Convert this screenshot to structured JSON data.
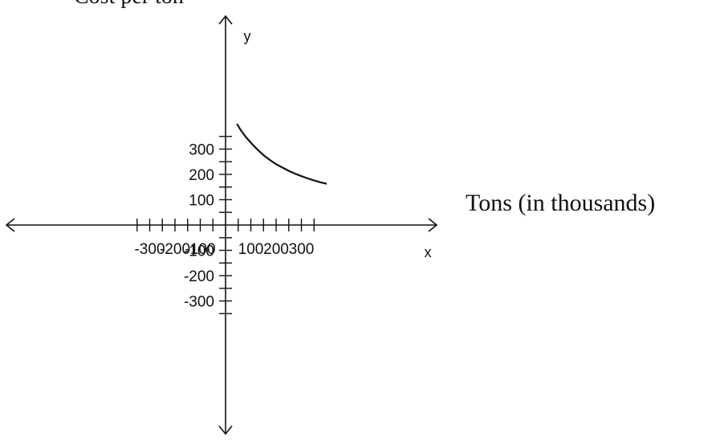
{
  "captions": {
    "top_partial": "Cost per ton",
    "x_side": "Tons (in thousands)"
  },
  "chart_data": {
    "type": "line",
    "title": "",
    "xlabel": "x",
    "ylabel": "y",
    "xlim": [
      -400,
      400
    ],
    "ylim": [
      -400,
      400
    ],
    "x_ticks": [
      -350,
      -300,
      -250,
      -200,
      -150,
      -100,
      -50,
      50,
      100,
      150,
      200,
      250,
      300,
      350
    ],
    "x_tick_labels": [
      {
        "value": -300,
        "label": "-300"
      },
      {
        "value": -200,
        "label": "-200"
      },
      {
        "value": -100,
        "label": "-100"
      },
      {
        "value": 100,
        "label": "100"
      },
      {
        "value": 200,
        "label": "200"
      },
      {
        "value": 300,
        "label": "300"
      }
    ],
    "y_ticks": [
      -350,
      -300,
      -250,
      -200,
      -150,
      -100,
      -50,
      50,
      100,
      150,
      200,
      250,
      300,
      350
    ],
    "y_tick_labels": [
      {
        "value": 300,
        "label": "300"
      },
      {
        "value": 200,
        "label": "200"
      },
      {
        "value": 100,
        "label": "100"
      },
      {
        "value": -100,
        "label": "-100"
      },
      {
        "value": -200,
        "label": "-200"
      },
      {
        "value": -300,
        "label": "-300"
      }
    ],
    "grid": false,
    "series": [
      {
        "color": "#111111",
        "x": [
          45,
          60,
          80,
          100,
          125,
          150,
          175,
          200,
          225,
          250,
          275,
          300,
          325,
          350,
          375,
          400
        ],
        "y": [
          400,
          375,
          348,
          325,
          299,
          276,
          257,
          240,
          227,
          214,
          203,
          193,
          184,
          176,
          169,
          163
        ]
      }
    ]
  }
}
